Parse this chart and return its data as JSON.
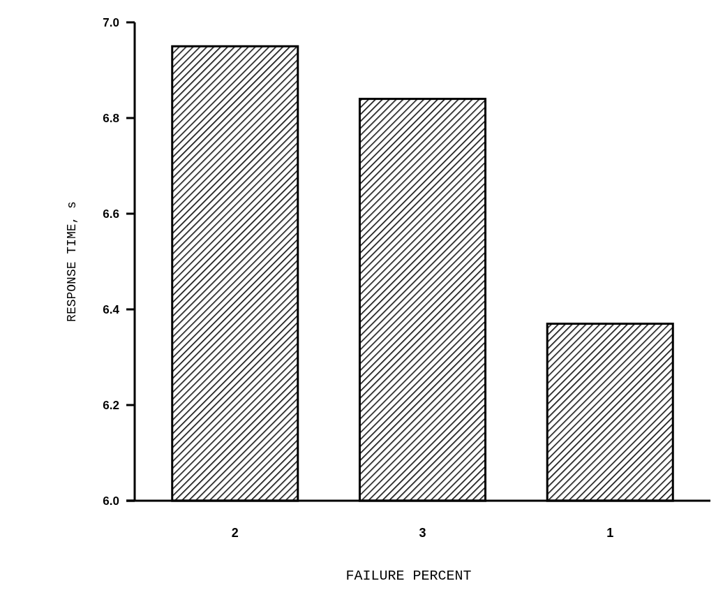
{
  "chart_data": {
    "type": "bar",
    "xlabel": "FAILURE PERCENT",
    "ylabel": "RESPONSE TIME, s",
    "categories": [
      "2",
      "3",
      "1"
    ],
    "values": [
      6.95,
      6.84,
      6.37
    ],
    "color": "#000000",
    "ylim": [
      6.0,
      7.0
    ],
    "yticks": [
      {
        "value": 6.0,
        "label": "6.0"
      },
      {
        "value": 6.2,
        "label": "6.2"
      },
      {
        "value": 6.4,
        "label": "6.4"
      },
      {
        "value": 6.6,
        "label": "6.6"
      },
      {
        "value": 6.8,
        "label": "6.8"
      },
      {
        "value": 7.0,
        "label": "7.0"
      }
    ],
    "grid": false
  }
}
